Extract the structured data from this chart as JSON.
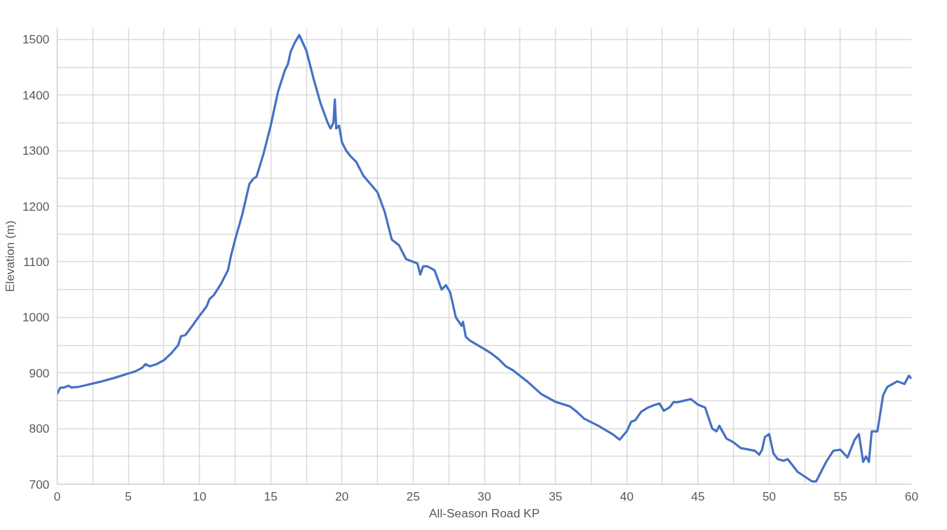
{
  "chart_data": {
    "type": "line",
    "xlabel": "All-Season Road KP",
    "ylabel": "Elevation (m)",
    "xlim": [
      0,
      60
    ],
    "ylim": [
      700,
      1520
    ],
    "xticks": [
      0,
      5,
      10,
      15,
      20,
      25,
      30,
      35,
      40,
      45,
      50,
      55,
      60
    ],
    "yticks": [
      700,
      800,
      900,
      1000,
      1100,
      1200,
      1300,
      1400,
      1500
    ],
    "grid": true,
    "marker": "none",
    "line_style": "solid",
    "series": [
      {
        "color": "#4472c4",
        "x": [
          0,
          0.2,
          0.5,
          0.8,
          1,
          1.5,
          2,
          3,
          4,
          5,
          5.5,
          6,
          6.2,
          6.5,
          7,
          7.5,
          8,
          8.5,
          8.7,
          9,
          9.5,
          10,
          10.5,
          10.7,
          11,
          11.5,
          12,
          12.2,
          12.5,
          13,
          13.5,
          13.8,
          14,
          14.5,
          15,
          15.5,
          16,
          16.2,
          16.4,
          16.7,
          17,
          17.5,
          18,
          18.5,
          19,
          19.2,
          19.4,
          19.5,
          19.6,
          19.8,
          20,
          20.3,
          20.6,
          21,
          21.5,
          22,
          22.5,
          23,
          23.5,
          24,
          24.5,
          25,
          25.3,
          25.5,
          25.7,
          26,
          26.5,
          27,
          27.3,
          27.6,
          28,
          28.4,
          28.5,
          28.7,
          29,
          30,
          30.5,
          31,
          31.5,
          32,
          32.5,
          33,
          34,
          35,
          36,
          36.5,
          37,
          38,
          39,
          39.5,
          40,
          40.3,
          40.6,
          41,
          41.5,
          42,
          42.3,
          42.6,
          43,
          43.3,
          43.5,
          44,
          44.5,
          45,
          45.5,
          46,
          46.3,
          46.5,
          47,
          47.5,
          48,
          49,
          49.3,
          49.5,
          49.7,
          50,
          50.3,
          50.6,
          51,
          51.3,
          52,
          53,
          53.3,
          54,
          54.5,
          55,
          55.5,
          56,
          56.3,
          56.6,
          56.8,
          57,
          57.2,
          57.6,
          58,
          58.3,
          59,
          59.5,
          59.8,
          60
        ],
        "values": [
          862,
          873,
          874,
          877,
          874,
          875,
          878,
          884,
          891,
          899,
          903,
          910,
          916,
          912,
          916,
          923,
          935,
          950,
          966,
          968,
          985,
          1003,
          1020,
          1033,
          1040,
          1060,
          1085,
          1110,
          1140,
          1185,
          1240,
          1250,
          1253,
          1295,
          1345,
          1405,
          1445,
          1455,
          1478,
          1495,
          1508,
          1480,
          1430,
          1385,
          1350,
          1340,
          1350,
          1392,
          1340,
          1345,
          1315,
          1300,
          1290,
          1280,
          1255,
          1240,
          1225,
          1190,
          1140,
          1130,
          1105,
          1100,
          1097,
          1077,
          1092,
          1092,
          1085,
          1050,
          1058,
          1045,
          1000,
          985,
          992,
          965,
          958,
          943,
          935,
          925,
          912,
          905,
          895,
          885,
          862,
          848,
          840,
          830,
          818,
          805,
          790,
          780,
          795,
          812,
          815,
          830,
          838,
          843,
          845,
          832,
          838,
          848,
          847,
          850,
          853,
          843,
          838,
          800,
          795,
          805,
          782,
          775,
          765,
          760,
          753,
          762,
          785,
          790,
          755,
          745,
          742,
          745,
          722,
          705,
          705,
          740,
          760,
          762,
          748,
          780,
          790,
          740,
          750,
          740,
          795,
          795,
          860,
          875,
          885,
          880,
          895,
          890
        ]
      }
    ]
  }
}
